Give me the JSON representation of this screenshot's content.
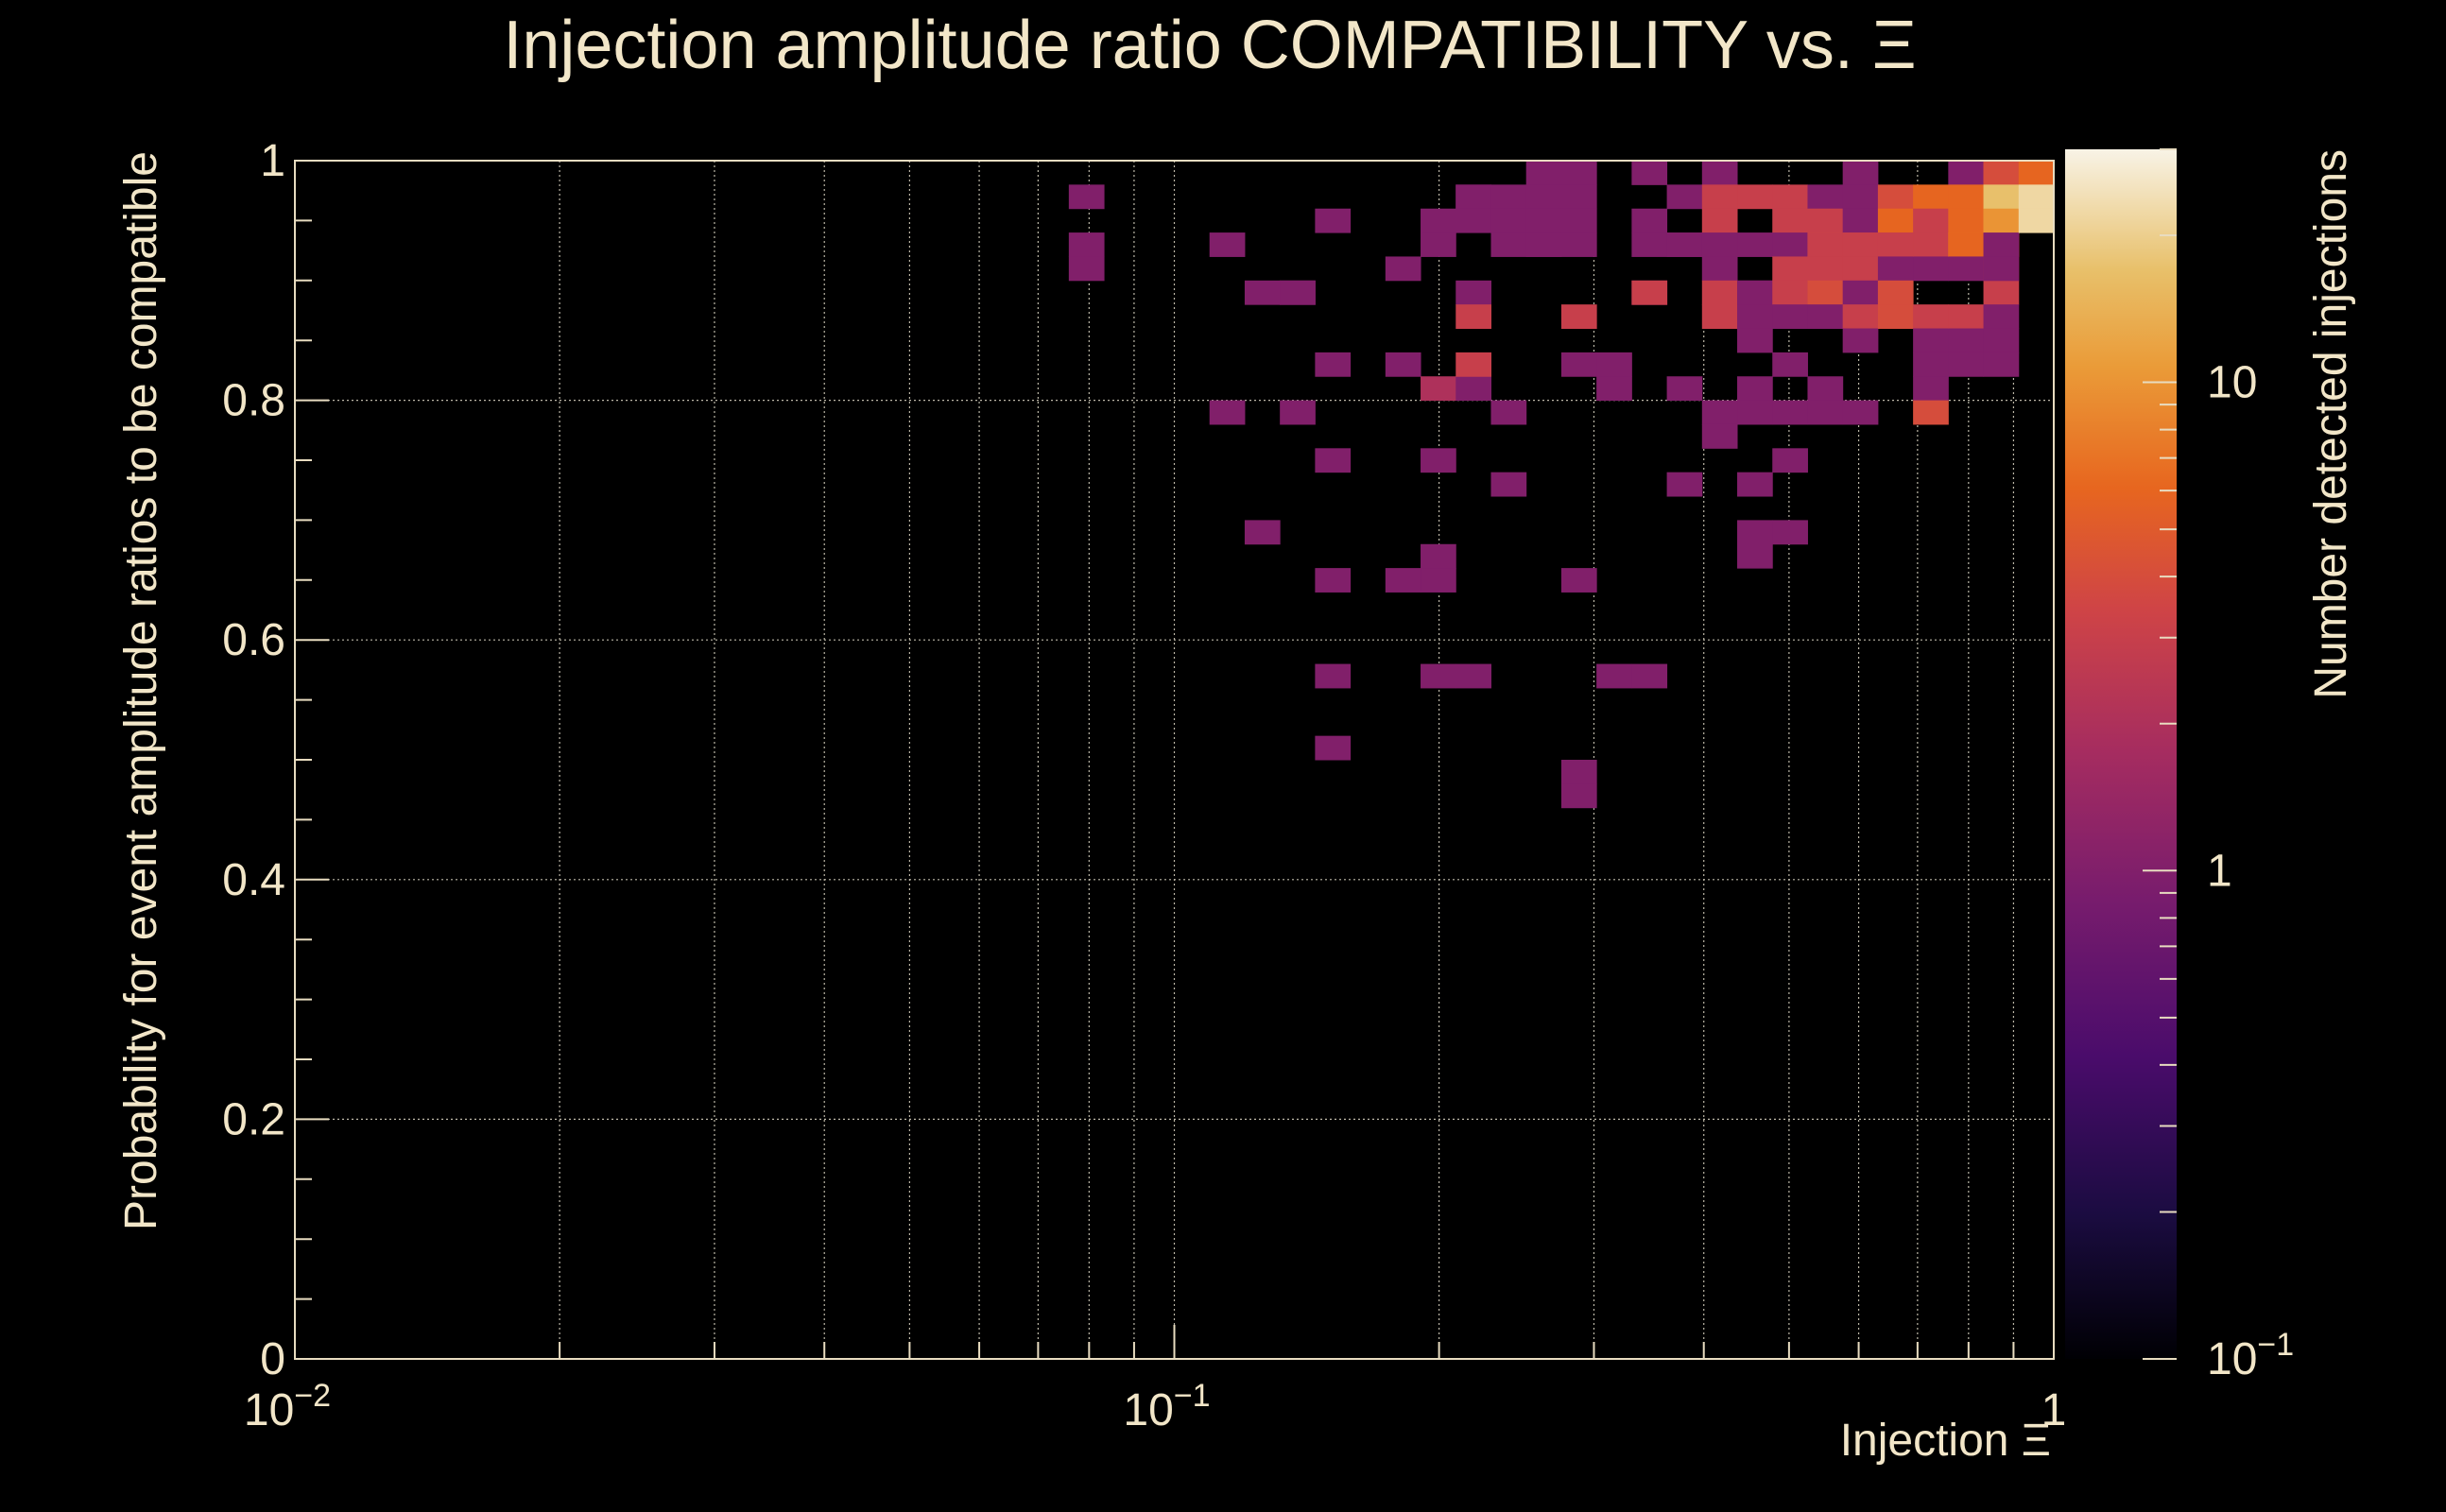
{
  "chart_data": {
    "type": "heatmap",
    "title": "Injection amplitude ratio COMPATIBILITY vs.  Ξ",
    "xlabel": "Injection Ξ",
    "ylabel": "Probability for event amplitude ratios to be compatible",
    "zlabel": "Number detected injections",
    "xscale": "log",
    "xlim": [
      0.01,
      1
    ],
    "ylim": [
      0,
      1
    ],
    "zscale": "log",
    "zlim": [
      0.1,
      30
    ],
    "grid": true,
    "x_bins": 50,
    "y_bins": 50,
    "x_ticks": [
      {
        "value": 0.01,
        "label": "10",
        "sup": "−2"
      },
      {
        "value": 0.1,
        "label": "10",
        "sup": "−1"
      },
      {
        "value": 1,
        "label": "1",
        "sup": ""
      }
    ],
    "y_ticks": [
      {
        "value": 0,
        "label": "0"
      },
      {
        "value": 0.2,
        "label": "0.2"
      },
      {
        "value": 0.4,
        "label": "0.4"
      },
      {
        "value": 0.6,
        "label": "0.6"
      },
      {
        "value": 0.8,
        "label": "0.8"
      },
      {
        "value": 1,
        "label": "1"
      }
    ],
    "z_ticks": [
      {
        "value": 0.1,
        "label": "10",
        "sup": "−1"
      },
      {
        "value": 1,
        "label": "1",
        "sup": ""
      },
      {
        "value": 10,
        "label": "10",
        "sup": ""
      }
    ],
    "cells": [
      [
        0.081,
        0.97,
        1
      ],
      [
        0.081,
        0.94,
        1
      ],
      [
        0.081,
        0.9,
        1
      ],
      [
        0.115,
        0.92,
        1
      ],
      [
        0.115,
        0.78,
        1
      ],
      [
        0.126,
        0.88,
        1
      ],
      [
        0.126,
        0.68,
        1
      ],
      [
        0.138,
        0.89,
        1
      ],
      [
        0.138,
        0.88,
        1
      ],
      [
        0.138,
        0.78,
        1
      ],
      [
        0.145,
        0.95,
        1
      ],
      [
        0.145,
        0.82,
        1
      ],
      [
        0.145,
        0.74,
        1
      ],
      [
        0.145,
        0.64,
        1
      ],
      [
        0.158,
        0.58,
        1
      ],
      [
        0.158,
        0.51,
        1
      ],
      [
        0.174,
        0.9,
        1
      ],
      [
        0.174,
        0.82,
        1
      ],
      [
        0.174,
        0.64,
        1
      ],
      [
        0.191,
        0.95,
        1
      ],
      [
        0.191,
        0.94,
        1
      ],
      [
        0.191,
        0.8,
        2
      ],
      [
        0.191,
        0.74,
        1
      ],
      [
        0.191,
        0.66,
        1
      ],
      [
        0.191,
        0.64,
        1
      ],
      [
        0.191,
        0.58,
        1
      ],
      [
        0.209,
        0.97,
        1
      ],
      [
        0.209,
        0.88,
        1
      ],
      [
        0.209,
        0.8,
        1
      ],
      [
        0.209,
        0.58,
        1
      ],
      [
        0.229,
        0.97,
        1
      ],
      [
        0.229,
        0.95,
        1
      ],
      [
        0.229,
        0.86,
        3
      ],
      [
        0.229,
        0.82,
        3
      ],
      [
        0.251,
        0.97,
        1
      ],
      [
        0.251,
        0.95,
        1
      ],
      [
        0.251,
        0.92,
        1
      ],
      [
        0.251,
        0.78,
        1
      ],
      [
        0.251,
        0.72,
        1
      ],
      [
        0.275,
        0.99,
        1
      ],
      [
        0.275,
        0.97,
        1
      ],
      [
        0.275,
        0.95,
        1
      ],
      [
        0.275,
        0.94,
        1
      ],
      [
        0.275,
        0.93,
        1
      ],
      [
        0.288,
        0.99,
        1
      ],
      [
        0.288,
        0.97,
        1
      ],
      [
        0.288,
        0.95,
        1
      ],
      [
        0.288,
        0.94,
        1
      ],
      [
        0.288,
        0.86,
        3
      ],
      [
        0.288,
        0.82,
        1
      ],
      [
        0.288,
        0.64,
        1
      ],
      [
        0.288,
        0.48,
        1
      ],
      [
        0.288,
        0.46,
        1
      ],
      [
        0.316,
        0.82,
        1
      ],
      [
        0.316,
        0.8,
        1
      ],
      [
        0.316,
        0.56,
        1
      ],
      [
        0.347,
        0.99,
        1
      ],
      [
        0.347,
        0.95,
        1
      ],
      [
        0.347,
        0.93,
        1
      ],
      [
        0.347,
        0.89,
        1
      ],
      [
        0.347,
        0.88,
        3
      ],
      [
        0.347,
        0.58,
        1
      ],
      [
        0.38,
        0.97,
        1
      ],
      [
        0.38,
        0.93,
        1
      ],
      [
        0.38,
        0.92,
        1
      ],
      [
        0.38,
        0.8,
        1
      ],
      [
        0.38,
        0.72,
        1
      ],
      [
        0.417,
        0.99,
        1
      ],
      [
        0.417,
        0.97,
        3
      ],
      [
        0.417,
        0.95,
        3
      ],
      [
        0.417,
        0.92,
        1
      ],
      [
        0.417,
        0.9,
        1
      ],
      [
        0.417,
        0.88,
        3
      ],
      [
        0.417,
        0.86,
        3
      ],
      [
        0.417,
        0.78,
        1
      ],
      [
        0.417,
        0.76,
        1
      ],
      [
        0.457,
        0.97,
        3
      ],
      [
        0.457,
        0.92,
        1
      ],
      [
        0.457,
        0.89,
        1
      ],
      [
        0.457,
        0.88,
        1
      ],
      [
        0.457,
        0.86,
        1
      ],
      [
        0.457,
        0.84,
        1
      ],
      [
        0.457,
        0.8,
        1
      ],
      [
        0.457,
        0.78,
        1
      ],
      [
        0.457,
        0.72,
        1
      ],
      [
        0.457,
        0.68,
        1
      ],
      [
        0.457,
        0.66,
        1
      ],
      [
        0.501,
        0.97,
        3
      ],
      [
        0.501,
        0.95,
        3
      ],
      [
        0.501,
        0.92,
        1
      ],
      [
        0.501,
        0.9,
        3
      ],
      [
        0.501,
        0.88,
        3
      ],
      [
        0.501,
        0.86,
        1
      ],
      [
        0.501,
        0.82,
        1
      ],
      [
        0.501,
        0.78,
        1
      ],
      [
        0.501,
        0.74,
        1
      ],
      [
        0.501,
        0.68,
        1
      ],
      [
        0.55,
        0.97,
        1
      ],
      [
        0.55,
        0.95,
        3
      ],
      [
        0.55,
        0.93,
        4
      ],
      [
        0.55,
        0.92,
        3
      ],
      [
        0.55,
        0.9,
        3
      ],
      [
        0.55,
        0.88,
        4
      ],
      [
        0.55,
        0.86,
        1
      ],
      [
        0.55,
        0.8,
        1
      ],
      [
        0.55,
        0.78,
        1
      ],
      [
        0.603,
        0.99,
        1
      ],
      [
        0.603,
        0.97,
        1
      ],
      [
        0.603,
        0.95,
        1
      ],
      [
        0.603,
        0.93,
        3
      ],
      [
        0.603,
        0.92,
        3
      ],
      [
        0.603,
        0.9,
        3
      ],
      [
        0.603,
        0.88,
        1
      ],
      [
        0.603,
        0.86,
        3
      ],
      [
        0.603,
        0.84,
        1
      ],
      [
        0.603,
        0.78,
        1
      ],
      [
        0.661,
        0.97,
        4
      ],
      [
        0.661,
        0.95,
        6
      ],
      [
        0.661,
        0.93,
        3
      ],
      [
        0.661,
        0.92,
        3
      ],
      [
        0.661,
        0.9,
        1
      ],
      [
        0.661,
        0.88,
        4
      ],
      [
        0.661,
        0.86,
        4
      ],
      [
        0.725,
        0.97,
        6
      ],
      [
        0.725,
        0.95,
        3
      ],
      [
        0.725,
        0.93,
        3
      ],
      [
        0.725,
        0.92,
        3
      ],
      [
        0.725,
        0.9,
        1
      ],
      [
        0.725,
        0.86,
        3
      ],
      [
        0.725,
        0.84,
        1
      ],
      [
        0.725,
        0.82,
        1
      ],
      [
        0.725,
        0.8,
        1
      ],
      [
        0.725,
        0.78,
        4
      ],
      [
        0.759,
        0.99,
        1
      ],
      [
        0.759,
        0.97,
        6
      ],
      [
        0.759,
        0.95,
        6
      ],
      [
        0.759,
        0.93,
        8
      ],
      [
        0.759,
        0.92,
        6
      ],
      [
        0.759,
        0.9,
        1
      ],
      [
        0.759,
        0.86,
        3
      ],
      [
        0.759,
        0.84,
        1
      ],
      [
        0.759,
        0.82,
        1
      ],
      [
        0.832,
        0.99,
        4
      ],
      [
        0.832,
        0.97,
        4
      ],
      [
        0.832,
        0.95,
        13
      ],
      [
        0.832,
        0.93,
        8
      ],
      [
        0.832,
        0.92,
        4
      ],
      [
        0.832,
        0.9,
        3
      ],
      [
        0.832,
        0.88,
        3
      ],
      [
        0.832,
        0.86,
        1
      ],
      [
        0.832,
        0.84,
        1
      ],
      [
        0.832,
        0.82,
        1
      ],
      [
        0.871,
        0.99,
        4
      ],
      [
        0.871,
        0.97,
        8
      ],
      [
        0.871,
        0.95,
        12
      ],
      [
        0.871,
        0.93,
        6
      ],
      [
        0.871,
        0.92,
        3
      ],
      [
        0.871,
        0.9,
        1
      ],
      [
        0.912,
        0.99,
        4
      ],
      [
        0.912,
        0.97,
        17
      ],
      [
        0.912,
        0.95,
        10
      ],
      [
        0.912,
        0.92,
        1
      ],
      [
        0.955,
        0.99,
        6
      ],
      [
        0.955,
        0.97,
        22
      ],
      [
        0.955,
        0.95,
        22
      ]
    ]
  }
}
